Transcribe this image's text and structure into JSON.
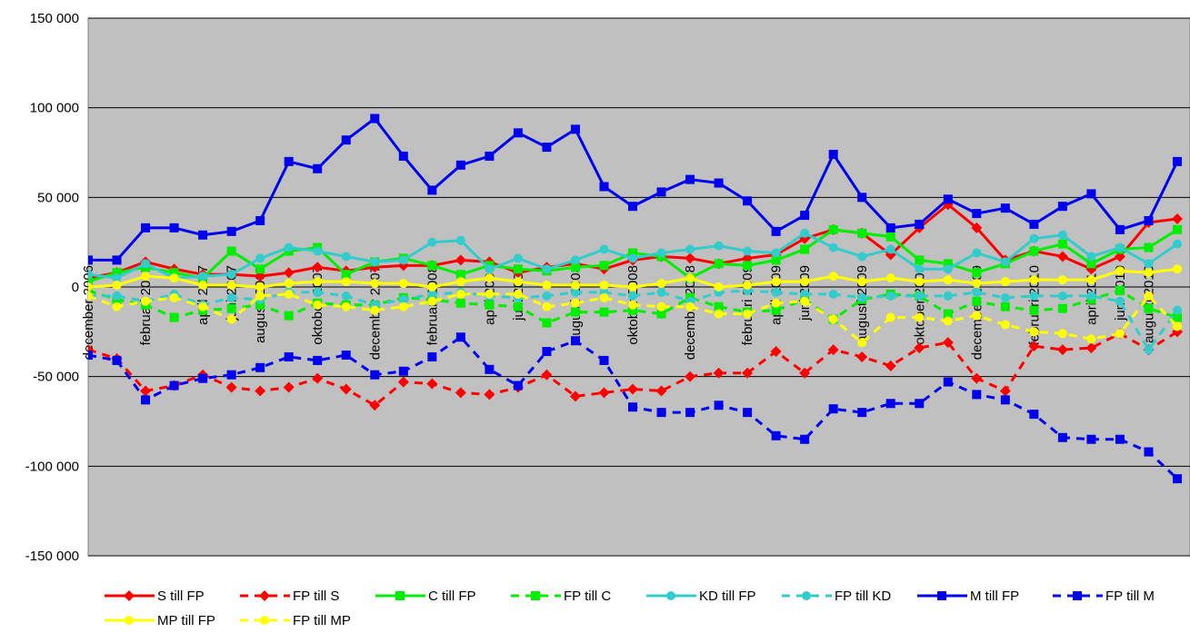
{
  "chart_data": {
    "type": "line",
    "categories": [
      "december 2006",
      null,
      "februari 2007",
      null,
      "april 2007",
      "juni 2007",
      "augusti 2007",
      null,
      "oktober 2007",
      null,
      "december 2007",
      null,
      "februari 2008",
      null,
      "april 2008",
      "juni 2008",
      null,
      "augusti 2008",
      null,
      "oktober 2008",
      null,
      "december 2008",
      null,
      "februari 2009",
      "april 2009",
      "juni 2009",
      null,
      "augusti 2009",
      null,
      "oktober 2009",
      null,
      "december 2009",
      null,
      "februari 2010",
      null,
      "april 2010",
      "juni 2010",
      "augusti 2010",
      null
    ],
    "ylim": [
      -150000,
      150000
    ],
    "yticks": [
      {
        "value": -150000,
        "label": "-150 000"
      },
      {
        "value": -100000,
        "label": "-100 000"
      },
      {
        "value": -50000,
        "label": "-50 000"
      },
      0,
      {
        "value": 50000,
        "label": "50 000"
      },
      {
        "value": 100000,
        "label": "100 000"
      },
      {
        "value": 150000,
        "label": "150 000"
      }
    ],
    "grid": true,
    "legend": "bottom",
    "series": [
      {
        "name": "S till FP",
        "color": "#ff0000",
        "line_style": "solid",
        "marker": "diamond",
        "values": [
          5000,
          8000,
          14000,
          10000,
          7000,
          7000,
          6000,
          8000,
          11000,
          9000,
          11000,
          12000,
          12000,
          15000,
          14000,
          8000,
          11000,
          13000,
          10000,
          15000,
          17000,
          16000,
          13000,
          16000,
          18000,
          27000,
          32000,
          30000,
          18000,
          33000,
          46000,
          33000,
          15000,
          20000,
          17000,
          10000,
          17000,
          36000,
          38000
        ]
      },
      {
        "name": "FP till S",
        "color": "#ff0000",
        "line_style": "dashed",
        "marker": "diamond",
        "values": [
          -35000,
          -40000,
          -58000,
          -55000,
          -49000,
          -56000,
          -58000,
          -56000,
          -51000,
          -57000,
          -66000,
          -53000,
          -54000,
          -59000,
          -60000,
          -56000,
          -49000,
          -61000,
          -59000,
          -57000,
          -58000,
          -50000,
          -48000,
          -48000,
          -36000,
          -48000,
          -35000,
          -39000,
          -44000,
          -34000,
          -31000,
          -51000,
          -58000,
          -33000,
          -35000,
          -34000,
          -26000,
          -35000,
          -25000
        ]
      },
      {
        "name": "C till FP",
        "color": "#00ee00",
        "line_style": "solid",
        "marker": "square",
        "values": [
          3000,
          8000,
          11000,
          8000,
          5000,
          20000,
          10000,
          20000,
          22000,
          7000,
          14000,
          16000,
          12000,
          7000,
          12000,
          10000,
          9000,
          11000,
          12000,
          19000,
          17000,
          5000,
          13000,
          12000,
          15000,
          21000,
          32000,
          30000,
          28000,
          15000,
          13000,
          8000,
          13000,
          20000,
          24000,
          13000,
          21000,
          22000,
          32000
        ]
      },
      {
        "name": "FP till C",
        "color": "#00ee00",
        "line_style": "dashed",
        "marker": "square",
        "values": [
          -2000,
          -7000,
          -10000,
          -17000,
          -13000,
          -12000,
          -10000,
          -16000,
          -9000,
          -10000,
          -10000,
          -6000,
          -7000,
          -9000,
          -10000,
          -11000,
          -20000,
          -14000,
          -14000,
          -13000,
          -15000,
          -6000,
          -11000,
          -14000,
          -13000,
          -7000,
          -18000,
          -7000,
          -4000,
          -5000,
          -15000,
          -8000,
          -11000,
          -13000,
          -12000,
          -7000,
          -2000,
          -12000,
          -17000
        ]
      },
      {
        "name": "KD till FP",
        "color": "#33cccc",
        "line_style": "solid",
        "marker": "circle",
        "values": [
          7000,
          5000,
          13000,
          5000,
          6000,
          7000,
          16000,
          22000,
          20000,
          17000,
          14000,
          15000,
          25000,
          26000,
          10000,
          16000,
          10000,
          15000,
          21000,
          16000,
          19000,
          21000,
          23000,
          20000,
          19000,
          30000,
          22000,
          17000,
          21000,
          10000,
          10000,
          19000,
          14000,
          27000,
          29000,
          17000,
          22000,
          13000,
          24000
        ]
      },
      {
        "name": "FP till KD",
        "color": "#33cccc",
        "line_style": "dashed",
        "marker": "circle",
        "values": [
          -5000,
          -5000,
          -8000,
          -4000,
          -10000,
          -6000,
          -7000,
          -3000,
          -3000,
          -5000,
          -10000,
          -7000,
          -4000,
          -3000,
          -5000,
          -6000,
          -5000,
          -3000,
          -3000,
          -5000,
          -3000,
          -8000,
          -3000,
          -2000,
          -3000,
          -4000,
          -4000,
          -6000,
          -5000,
          -5000,
          -5000,
          -3000,
          -6000,
          -5000,
          -5000,
          -5000,
          -8000,
          -35000,
          -13000
        ]
      },
      {
        "name": "M till FP",
        "color": "#0000ee",
        "line_style": "solid",
        "marker": "square",
        "values": [
          15000,
          15000,
          33000,
          33000,
          29000,
          31000,
          37000,
          70000,
          66000,
          82000,
          94000,
          73000,
          54000,
          68000,
          73000,
          86000,
          78000,
          88000,
          56000,
          45000,
          53000,
          60000,
          58000,
          48000,
          31000,
          40000,
          74000,
          50000,
          33000,
          35000,
          49000,
          41000,
          44000,
          35000,
          45000,
          52000,
          32000,
          37000,
          70000
        ]
      },
      {
        "name": "FP till M",
        "color": "#0000ee",
        "line_style": "dashed",
        "marker": "square",
        "values": [
          -38000,
          -41000,
          -63000,
          -55000,
          -51000,
          -49000,
          -45000,
          -39000,
          -41000,
          -38000,
          -49000,
          -47000,
          -39000,
          -28000,
          -46000,
          -55000,
          -36000,
          -30000,
          -41000,
          -67000,
          -70000,
          -70000,
          -66000,
          -70000,
          -83000,
          -85000,
          -68000,
          -70000,
          -65000,
          -65000,
          -53000,
          -60000,
          -63000,
          -71000,
          -84000,
          -85000,
          -85000,
          -92000,
          -107000
        ]
      },
      {
        "name": "MP till FP",
        "color": "#ffff00",
        "line_style": "solid",
        "marker": "circle",
        "values": [
          0,
          1000,
          6000,
          5000,
          1000,
          1000,
          0,
          2000,
          3000,
          3000,
          2000,
          2000,
          0,
          3000,
          5000,
          3000,
          1000,
          1000,
          1000,
          0,
          2000,
          5000,
          0,
          1000,
          3000,
          3000,
          6000,
          3000,
          5000,
          3000,
          4000,
          2000,
          3000,
          4000,
          4000,
          4000,
          9000,
          8000,
          10000
        ]
      },
      {
        "name": "FP till MP",
        "color": "#ffff00",
        "line_style": "dashed",
        "marker": "circle",
        "values": [
          -5000,
          -11000,
          -8000,
          -6000,
          -11000,
          -18000,
          -5000,
          -4000,
          -10000,
          -11000,
          -13000,
          -11000,
          -8000,
          -4000,
          -4000,
          -4000,
          -11000,
          -9000,
          -6000,
          -10000,
          -11000,
          -11000,
          -15000,
          -15000,
          -9000,
          -8000,
          -18000,
          -31000,
          -17000,
          -17000,
          -19000,
          -16000,
          -21000,
          -25000,
          -26000,
          -29000,
          -26000,
          -5000,
          -22000
        ]
      }
    ]
  }
}
